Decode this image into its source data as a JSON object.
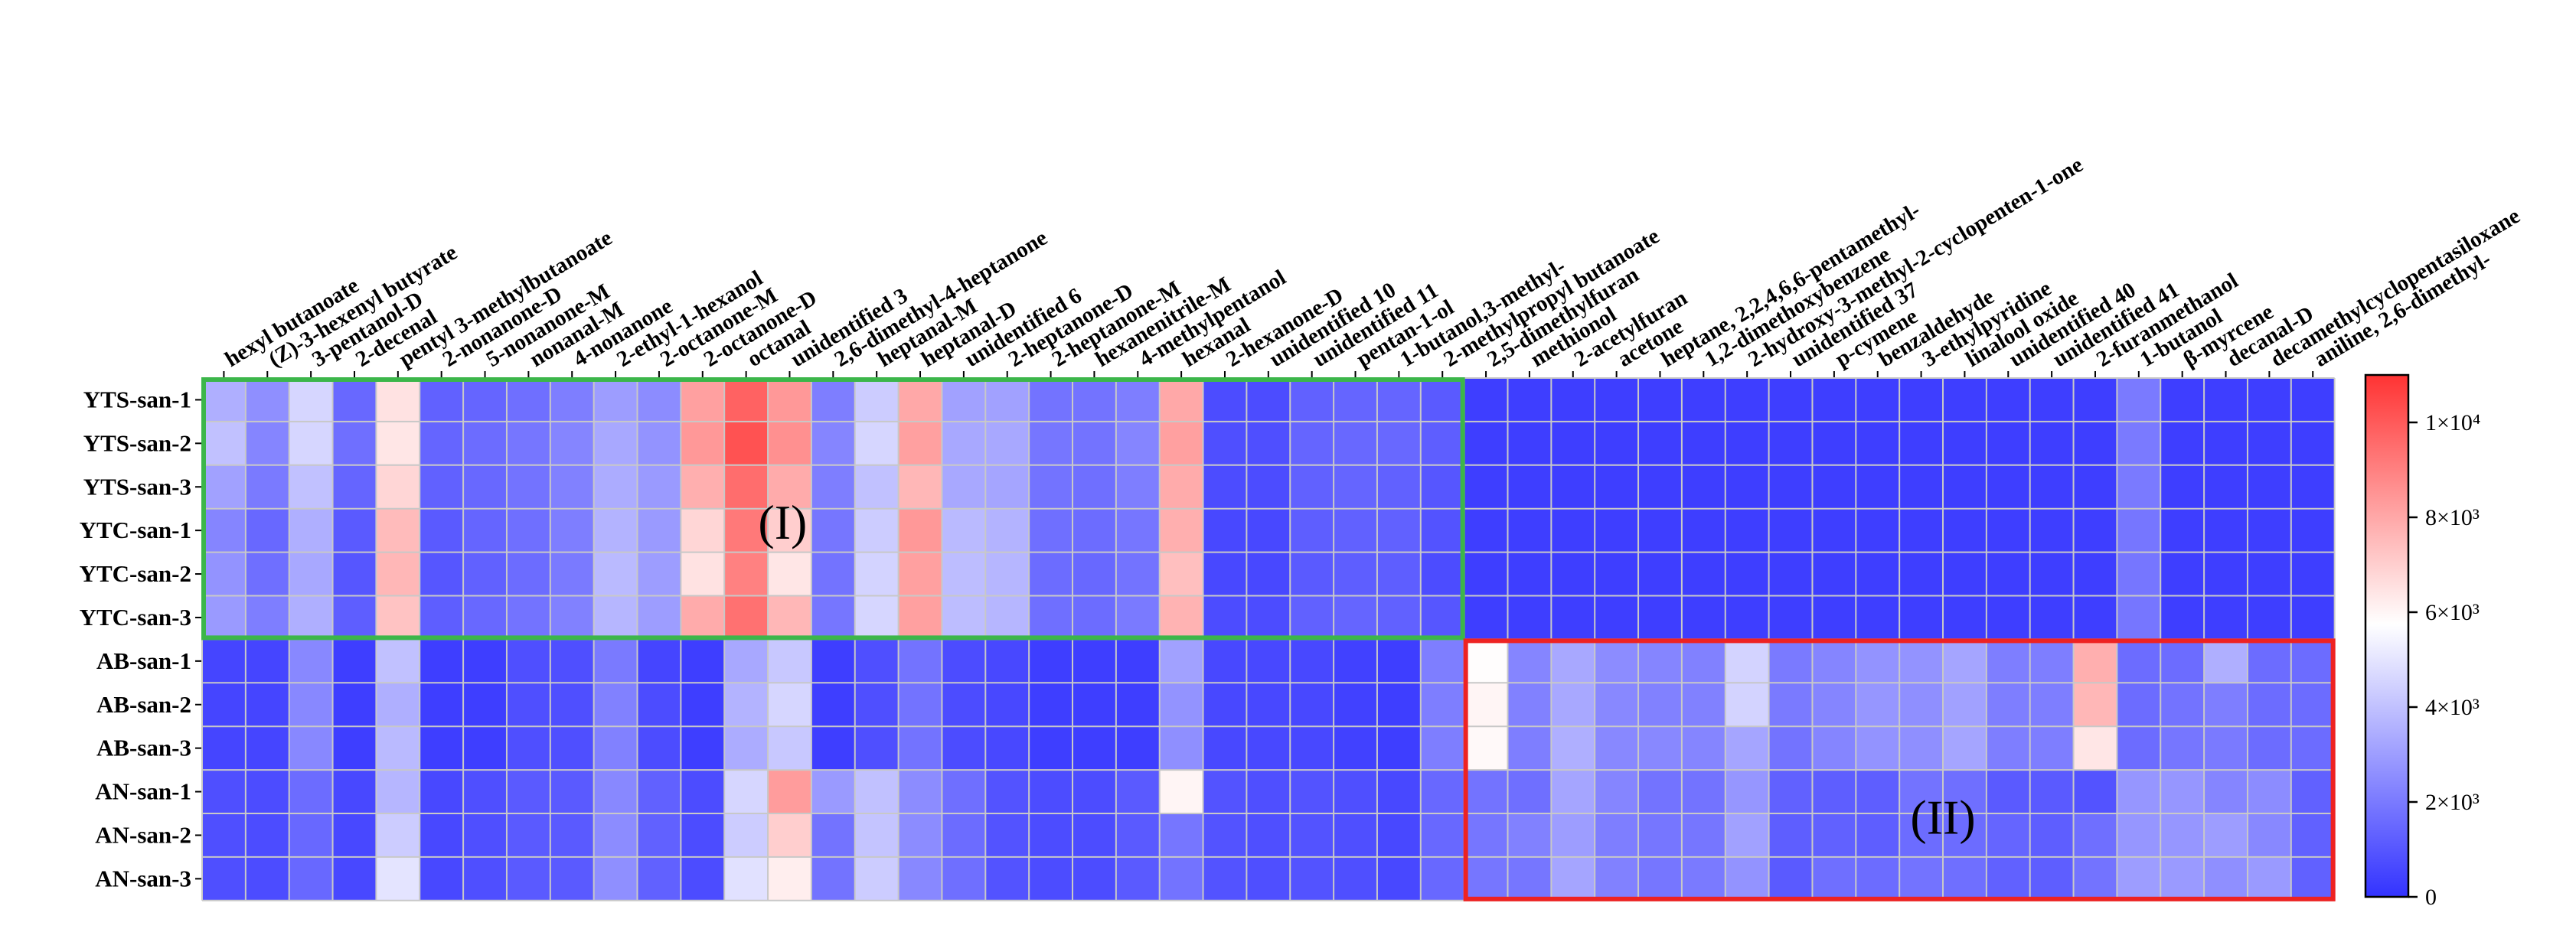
{
  "chart_data": {
    "type": "heatmap",
    "title": "",
    "columns": [
      "hexyl butanoate",
      "(Z)-3-hexenyl butyrate",
      "3-pentanol-D",
      "2-decenal",
      "pentyl 3-methylbutanoate",
      "2-nonanone-D",
      "5-nonanone-M",
      "nonanal-M",
      "4-nonanone",
      "2-ethyl-1-hexanol",
      "2-octanone-M",
      "2-octanone-D",
      "octanal",
      "unidentified 3",
      "2,6-dimethyl-4-heptanone",
      "heptanal-M",
      "heptanal-D",
      "unidentified 6",
      "2-heptanone-D",
      "2-heptanone-M",
      "hexanenitrile-M",
      "4-methylpentanol",
      "hexanal",
      "2-hexanone-D",
      "unidentified 10",
      "unidentified 11",
      "pentan-1-ol",
      "1-butanol,3-methyl-",
      "2-methylpropyl butanoate",
      "2,5-dimethylfuran",
      "methionol",
      "2-acetylfuran",
      "acetone",
      "heptane, 2,2,4,6,6-pentamethyl-",
      "1,2-dimethoxybenzene",
      "2-hydroxy-3-methyl-2-cyclopenten-1-one",
      "unidentified 37",
      "p-cymene",
      "benzaldehyde",
      "3-ethylpyridine",
      "linalool oxide",
      "unidentified 40",
      "unidentified 41",
      "2-furanmethanol",
      "1-butanol",
      "β-myrcene",
      "decanal-D",
      "decamethylcyclopentasiloxane",
      "aniline, 2,6-dimethyl-"
    ],
    "rows": [
      "YTS-san-1",
      "YTS-san-2",
      "YTS-san-3",
      "YTC-san-1",
      "YTC-san-2",
      "YTC-san-3",
      "AB-san-1",
      "AB-san-2",
      "AB-san-3",
      "AN-san-1",
      "AN-san-2",
      "AN-san-3"
    ],
    "values": [
      [
        3500,
        2600,
        4600,
        1500,
        6500,
        1300,
        1400,
        1700,
        2100,
        3000,
        2500,
        8200,
        9800,
        8400,
        2100,
        4300,
        8000,
        3100,
        3100,
        1800,
        1800,
        2100,
        8000,
        700,
        700,
        1300,
        1400,
        1400,
        1100,
        300,
        300,
        300,
        300,
        300,
        300,
        300,
        300,
        300,
        300,
        300,
        300,
        300,
        300,
        300,
        2000,
        300,
        300,
        300,
        300
      ],
      [
        4000,
        2300,
        4600,
        1700,
        6400,
        1400,
        1600,
        1900,
        2300,
        3300,
        2700,
        8400,
        10200,
        8600,
        2300,
        4600,
        8200,
        3300,
        3300,
        1900,
        1800,
        2300,
        8200,
        800,
        800,
        1400,
        1500,
        1500,
        1200,
        300,
        300,
        300,
        300,
        300,
        300,
        300,
        300,
        300,
        300,
        300,
        300,
        300,
        300,
        300,
        2000,
        300,
        300,
        300,
        300
      ],
      [
        3100,
        2000,
        4000,
        1400,
        6800,
        1300,
        1500,
        1800,
        2200,
        3400,
        2900,
        7800,
        9500,
        7900,
        2100,
        4000,
        7600,
        3300,
        3200,
        1800,
        1700,
        2100,
        7900,
        700,
        700,
        1300,
        1400,
        1300,
        1000,
        300,
        300,
        300,
        300,
        300,
        300,
        300,
        300,
        300,
        300,
        300,
        300,
        300,
        300,
        300,
        2000,
        300,
        300,
        300,
        300
      ],
      [
        2300,
        1500,
        3500,
        1100,
        7500,
        1100,
        1400,
        1700,
        2100,
        3600,
        2900,
        6800,
        9200,
        7000,
        1900,
        4300,
        8400,
        3800,
        3600,
        1700,
        1600,
        1900,
        7800,
        600,
        600,
        1200,
        1300,
        1300,
        900,
        300,
        300,
        300,
        300,
        300,
        300,
        300,
        300,
        300,
        300,
        300,
        300,
        300,
        300,
        300,
        1900,
        300,
        300,
        300,
        300
      ],
      [
        2700,
        1700,
        3300,
        1000,
        7600,
        1000,
        1300,
        1600,
        2000,
        3800,
        3000,
        6500,
        9000,
        6400,
        1800,
        4500,
        8200,
        3900,
        3700,
        1600,
        1500,
        1800,
        7400,
        600,
        600,
        1100,
        1200,
        1200,
        700,
        300,
        300,
        300,
        300,
        300,
        300,
        300,
        300,
        300,
        300,
        300,
        300,
        300,
        300,
        300,
        1900,
        300,
        300,
        300,
        300
      ],
      [
        2900,
        2100,
        3500,
        1200,
        7300,
        1200,
        1500,
        1800,
        2200,
        3700,
        3000,
        7900,
        9400,
        7600,
        1900,
        4600,
        8200,
        3900,
        3700,
        1700,
        1600,
        2000,
        7700,
        700,
        700,
        1300,
        1400,
        1300,
        1000,
        300,
        300,
        300,
        300,
        300,
        300,
        300,
        300,
        300,
        300,
        300,
        300,
        300,
        300,
        300,
        1900,
        300,
        300,
        300,
        300
      ],
      [
        500,
        500,
        2400,
        300,
        4000,
        300,
        300,
        800,
        800,
        2000,
        500,
        300,
        3300,
        4200,
        300,
        800,
        1800,
        700,
        600,
        300,
        300,
        300,
        3100,
        600,
        600,
        600,
        400,
        300,
        2100,
        5800,
        2300,
        3300,
        2500,
        2300,
        2200,
        4500,
        2000,
        2300,
        2700,
        2700,
        3200,
        2100,
        2100,
        7800,
        1600,
        1600,
        3500,
        1600,
        1600
      ],
      [
        500,
        500,
        2400,
        300,
        3500,
        300,
        300,
        800,
        800,
        2200,
        700,
        300,
        3600,
        4600,
        300,
        800,
        1800,
        700,
        600,
        300,
        300,
        300,
        2700,
        600,
        600,
        600,
        400,
        300,
        2100,
        6000,
        2200,
        3300,
        2400,
        2200,
        2200,
        4500,
        2000,
        2300,
        2800,
        2600,
        3100,
        2100,
        2100,
        7600,
        1600,
        1800,
        2100,
        1600,
        1600
      ],
      [
        500,
        500,
        2400,
        300,
        3800,
        300,
        300,
        800,
        800,
        2200,
        700,
        300,
        3400,
        4200,
        300,
        800,
        1800,
        700,
        600,
        300,
        300,
        300,
        2600,
        600,
        600,
        600,
        400,
        300,
        2100,
        5900,
        2100,
        3500,
        2400,
        2400,
        2300,
        3200,
        1800,
        2300,
        2700,
        2600,
        3200,
        2100,
        2100,
        6400,
        1600,
        1900,
        2000,
        1600,
        1600
      ],
      [
        800,
        700,
        1600,
        600,
        3700,
        600,
        800,
        1100,
        1100,
        2400,
        1300,
        700,
        4600,
        8300,
        2900,
        4000,
        2500,
        1700,
        900,
        700,
        700,
        1100,
        6000,
        900,
        800,
        900,
        800,
        600,
        1500,
        1800,
        1700,
        3200,
        2300,
        1800,
        1800,
        2800,
        1300,
        1200,
        1200,
        1800,
        1700,
        1100,
        1100,
        900,
        2800,
        2800,
        2300,
        2500,
        1300
      ],
      [
        800,
        700,
        1500,
        600,
        4300,
        600,
        800,
        1100,
        1100,
        2500,
        1300,
        700,
        4300,
        7000,
        1800,
        4100,
        2500,
        1600,
        900,
        700,
        700,
        1100,
        1900,
        900,
        800,
        900,
        800,
        600,
        1500,
        1900,
        2200,
        3000,
        2100,
        1900,
        1900,
        3100,
        1200,
        1300,
        1200,
        1600,
        1600,
        1400,
        1200,
        1700,
        2800,
        2800,
        3000,
        2400,
        1300
      ],
      [
        800,
        700,
        1500,
        600,
        5000,
        600,
        800,
        1100,
        1100,
        2600,
        1300,
        700,
        4900,
        6200,
        1800,
        4300,
        2400,
        1700,
        900,
        700,
        700,
        1100,
        1800,
        900,
        800,
        900,
        800,
        600,
        1500,
        1900,
        1900,
        3200,
        2200,
        1900,
        2000,
        2700,
        1100,
        1700,
        1600,
        1800,
        1700,
        1300,
        1200,
        1800,
        3000,
        2900,
        2600,
        2900,
        1300
      ]
    ],
    "colorbar": {
      "min": 0,
      "max": 11000,
      "low_color": "#3333ff",
      "mid_color": "#ffffff",
      "mid_value": 5750,
      "high_color": "#ff3333",
      "tick_values": [
        0,
        2000,
        4000,
        6000,
        8000,
        10000
      ],
      "tick_labels": [
        "0",
        "2×10³",
        "4×10³",
        "6×10³",
        "8×10³",
        "1×10⁴"
      ]
    },
    "regions": [
      {
        "label": "(I)",
        "rows": [
          0,
          5
        ],
        "cols": [
          0,
          28
        ],
        "color": "#3cb64a"
      },
      {
        "label": "(II)",
        "rows": [
          6,
          11
        ],
        "cols": [
          29,
          48
        ],
        "color": "#ee2222"
      }
    ]
  }
}
